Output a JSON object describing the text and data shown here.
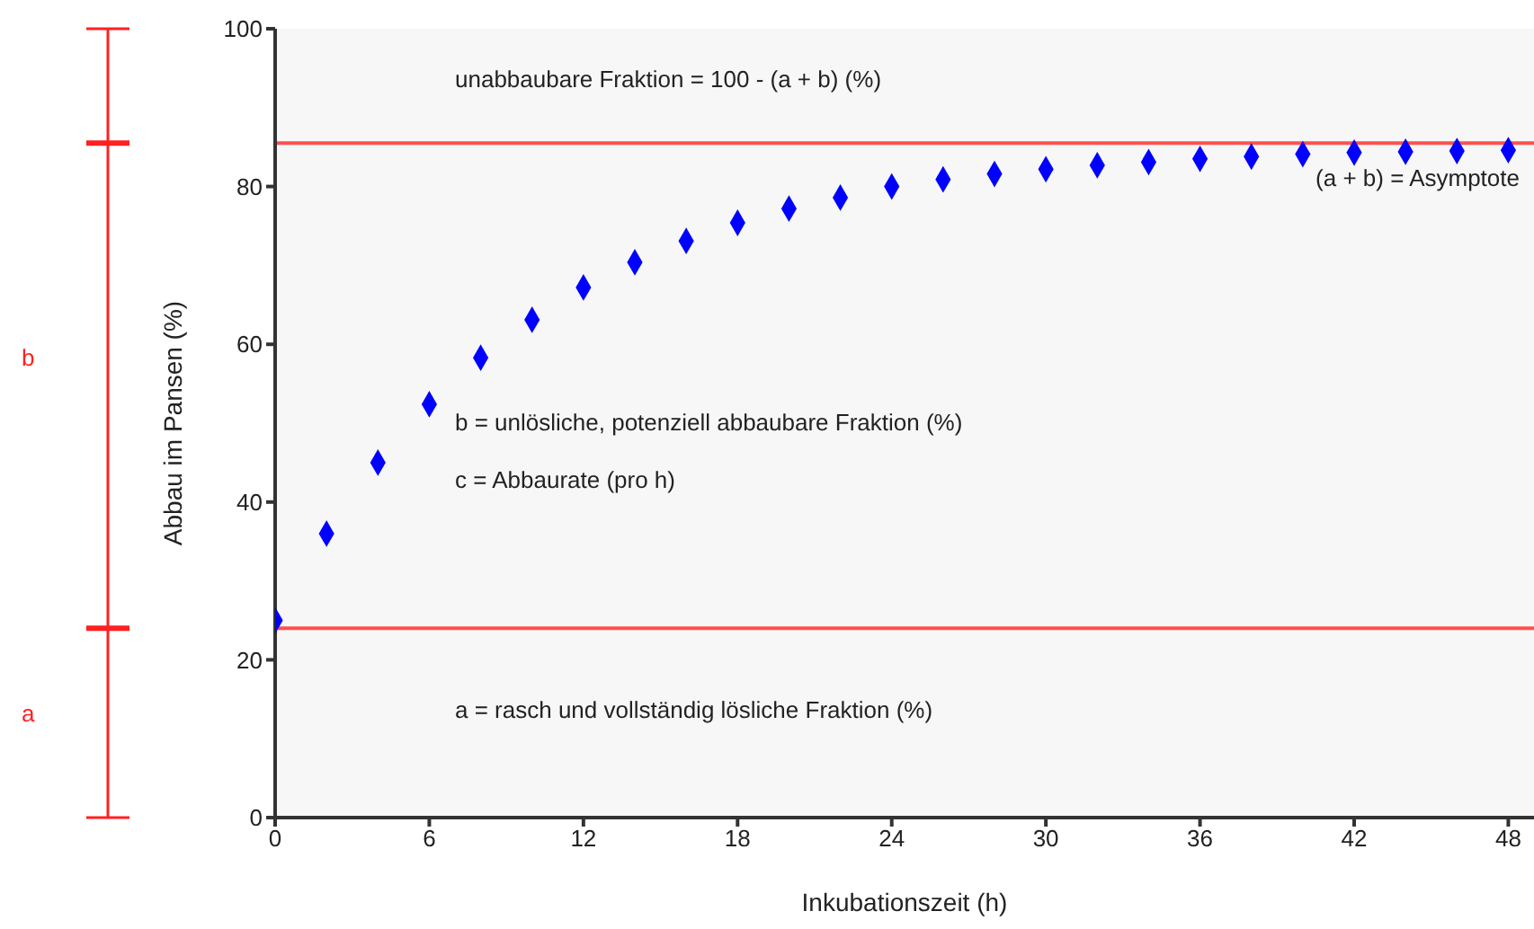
{
  "chart_data": {
    "type": "scatter",
    "xlabel": "Inkubationszeit (h)",
    "ylabel": "Abbau im Pansen (%)",
    "x": [
      0,
      2,
      4,
      6,
      8,
      10,
      12,
      14,
      16,
      18,
      20,
      22,
      24,
      26,
      28,
      30,
      32,
      34,
      36,
      38,
      40,
      42,
      44,
      46,
      48
    ],
    "series": [
      {
        "color": "#0000ff",
        "values": [
          25,
          36,
          45,
          52.4,
          58.3,
          63.1,
          67.2,
          70.4,
          73.1,
          75.4,
          77.2,
          78.6,
          80,
          80.9,
          81.6,
          82.2,
          82.7,
          83.1,
          83.5,
          83.8,
          84.1,
          84.3,
          84.4,
          84.5,
          84.6
        ]
      }
    ],
    "marker": "diamond",
    "xlim": [
      0,
      49
    ],
    "xticks": [
      0,
      6,
      12,
      18,
      24,
      30,
      36,
      42,
      48
    ],
    "ylim": [
      0,
      100
    ],
    "yticks": [
      0,
      20,
      40,
      60,
      80,
      100
    ],
    "ref_lines": [
      {
        "axis": "y",
        "value": 85.5,
        "label": "(a + b) = Asymptote",
        "color": "#ff5050"
      },
      {
        "axis": "y",
        "value": 24,
        "label": null,
        "color": "#ff5050"
      }
    ],
    "annotations": [
      "unabbaubare Fraktion = 100 - (a + b) (%)",
      "b = unlösliche, potenziell abbaubare Fraktion (%)",
      "c = Abbaurate (pro h)",
      "a = rasch und vollständig lösliche Fraktion (%)",
      "a",
      "b"
    ],
    "grid": false,
    "legend": false
  }
}
